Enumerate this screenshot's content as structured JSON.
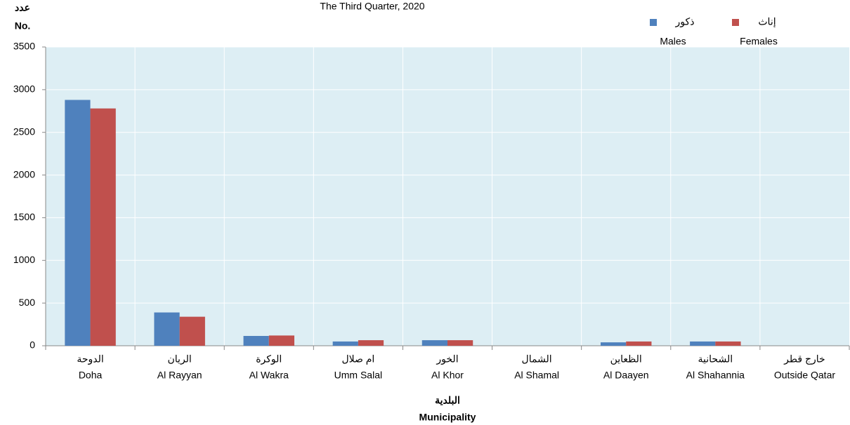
{
  "chart_data": {
    "type": "bar",
    "title": "The Third Quarter, 2020",
    "y_label_ar": "عدد",
    "y_label": "No.",
    "x_label_ar": "البلدية",
    "x_label": "Municipality",
    "categories_ar": [
      "الدوحة",
      "الريان",
      "الوكرة",
      "ام صلال",
      "الخور",
      "الشمال",
      "الظعاين",
      "الشحانية",
      "خارج قطر"
    ],
    "categories": [
      "Doha",
      "Al Rayyan",
      "Al Wakra",
      "Umm Salal",
      "Al Khor",
      "Al Shamal",
      "Al Daayen",
      "Al Shahannia",
      "Outside Qatar"
    ],
    "series": [
      {
        "name": "Males",
        "name_ar": "ذكور",
        "color": "#4f81bd",
        "values": [
          2880,
          390,
          115,
          50,
          65,
          0,
          40,
          50,
          0
        ]
      },
      {
        "name": "Females",
        "name_ar": "إناث",
        "color": "#c0504d",
        "values": [
          2780,
          340,
          120,
          65,
          65,
          0,
          50,
          50,
          0
        ]
      }
    ],
    "ylim": [
      0,
      3500
    ],
    "yticks": [
      0,
      500,
      1000,
      1500,
      2000,
      2500,
      3000,
      3500
    ],
    "grid": true,
    "legend": "top-right",
    "plot_background": "#ddeef4"
  }
}
